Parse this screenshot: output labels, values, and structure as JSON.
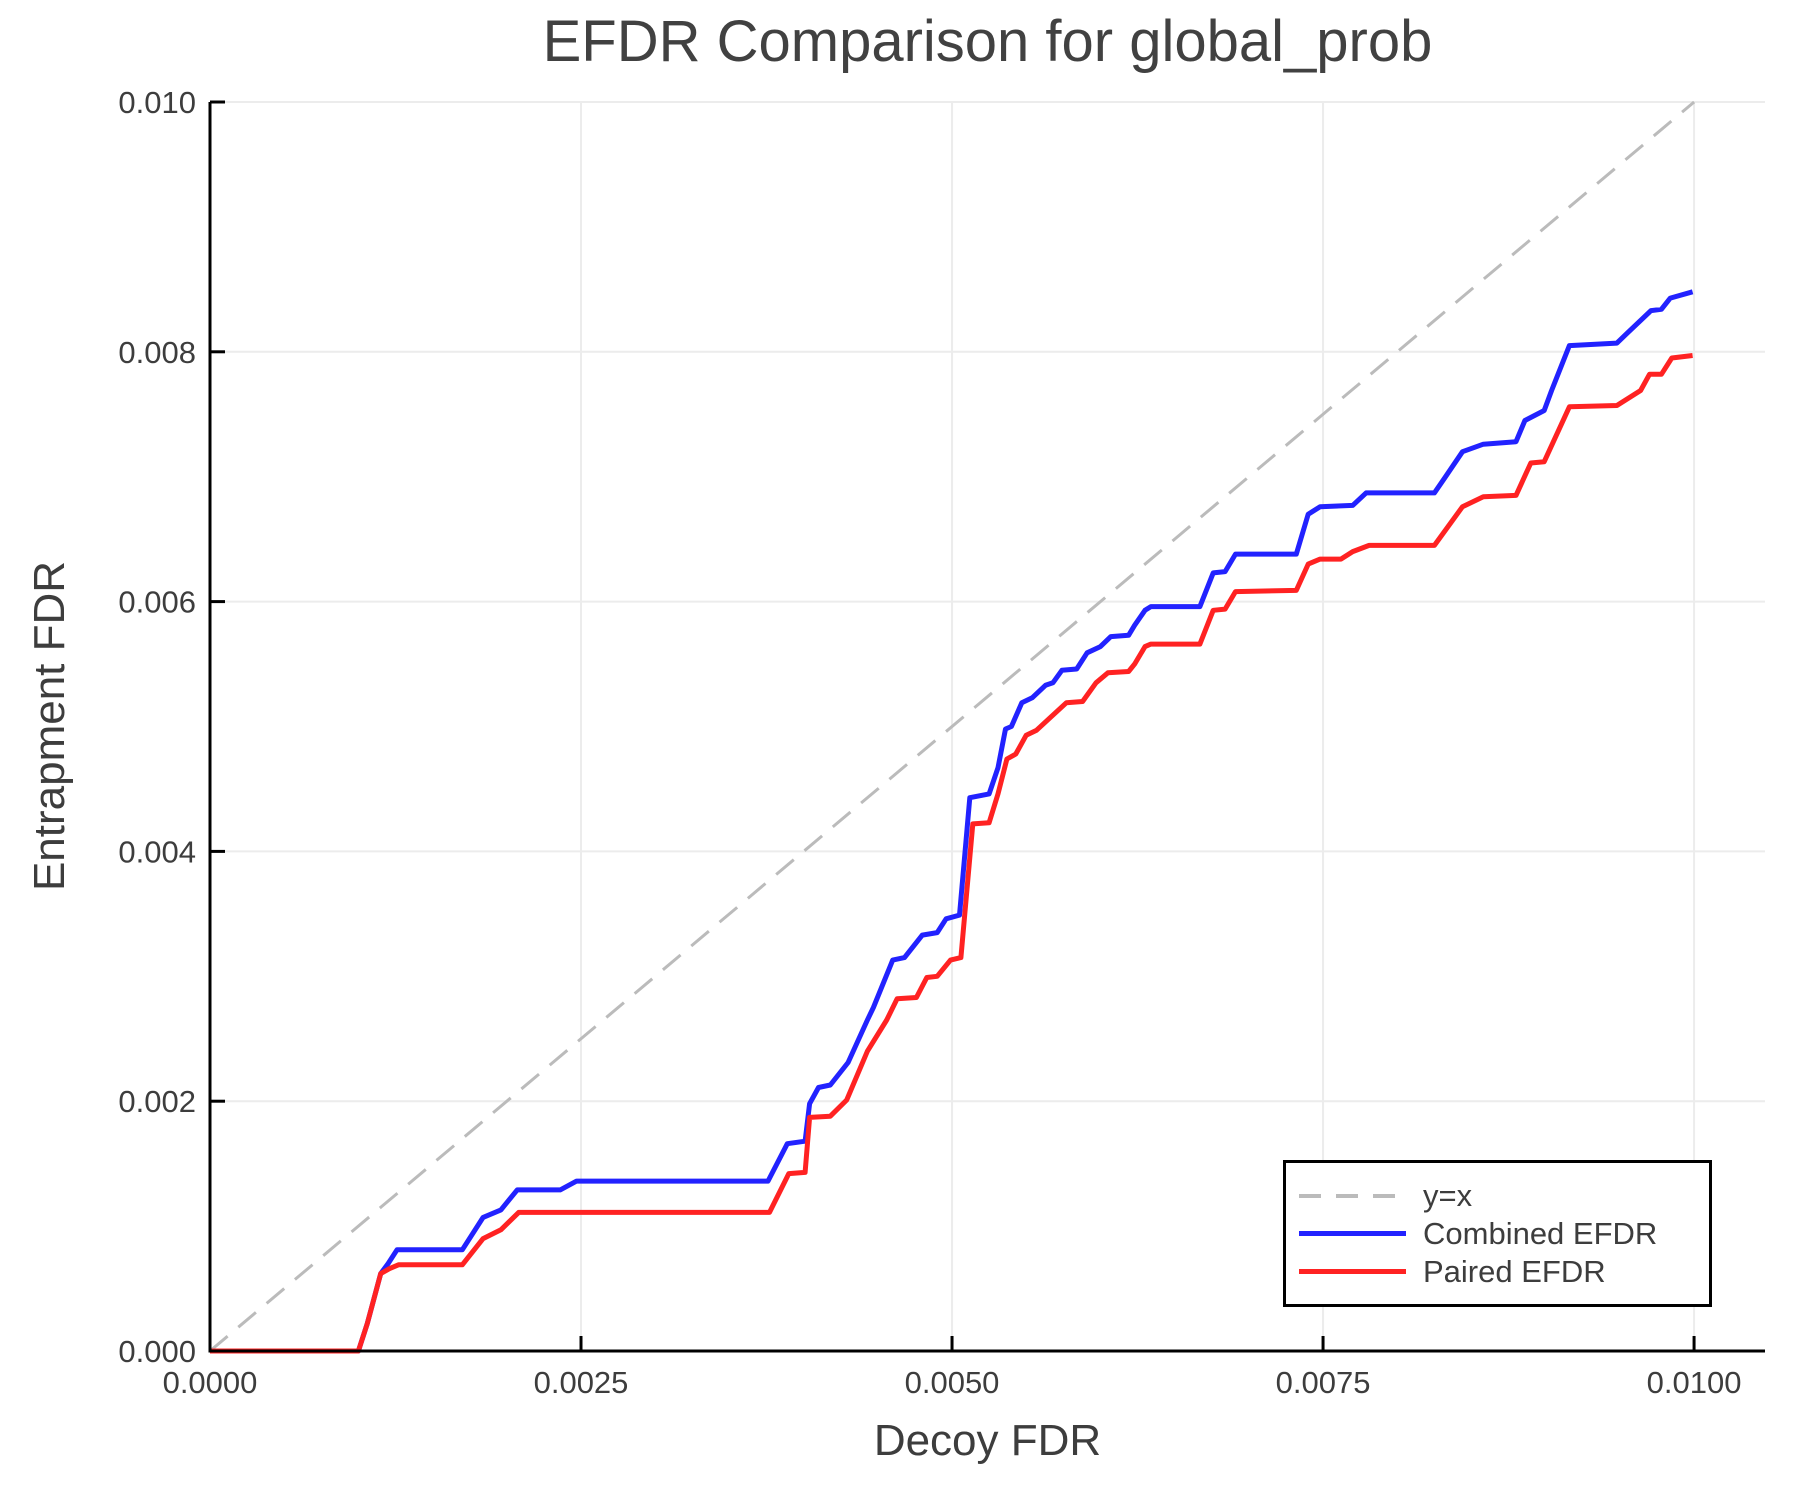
{
  "title": "EFDR Comparison for global_prob",
  "colors": {
    "text": "#3d3d3d",
    "grid": "#ececec",
    "spine": "#000000",
    "identity_line": "#bbbbbb",
    "combined": "#2222ff",
    "paired": "#ff2222",
    "legend_border": "#000000",
    "background": "#ffffff"
  },
  "chart_data": {
    "type": "line",
    "title": "EFDR Comparison for global_prob",
    "xlabel": "Decoy FDR",
    "ylabel": "Entrapment FDR",
    "xlim": [
      0,
      0.010478
    ],
    "ylim": [
      0,
      0.01
    ],
    "grid": true,
    "legend_position": "lower right",
    "xticks": {
      "values": [
        0,
        0.0025,
        0.005,
        0.0075,
        0.01
      ],
      "labels": [
        "0.0000",
        "0.0025",
        "0.0050",
        "0.0075",
        "0.0100"
      ]
    },
    "yticks": {
      "values": [
        0,
        0.002,
        0.004,
        0.006,
        0.008,
        0.01
      ],
      "labels": [
        "0.000",
        "0.002",
        "0.004",
        "0.006",
        "0.008",
        "0.010"
      ]
    },
    "series": [
      {
        "name": "y=x",
        "color": "#bbbbbb",
        "style": "dashed",
        "width": 3,
        "points": [
          [
            0,
            0
          ],
          [
            0.01,
            0.01
          ]
        ]
      },
      {
        "name": "Combined EFDR",
        "color": "#2222ff",
        "style": "solid",
        "width": 5,
        "points": [
          [
            0,
            0
          ],
          [
            0.001,
            0
          ],
          [
            0.00106,
            0.00022
          ],
          [
            0.00115,
            0.00062
          ],
          [
            0.0012,
            0.0007
          ],
          [
            0.00126,
            0.00081
          ],
          [
            0.0017,
            0.00081
          ],
          [
            0.00184,
            0.00107
          ],
          [
            0.00196,
            0.00113
          ],
          [
            0.00207,
            0.00129
          ],
          [
            0.00236,
            0.00129
          ],
          [
            0.00247,
            0.00136
          ],
          [
            0.00376,
            0.00136
          ],
          [
            0.00389,
            0.00166
          ],
          [
            0.00401,
            0.00168
          ],
          [
            0.00404,
            0.00198
          ],
          [
            0.0041,
            0.00211
          ],
          [
            0.00418,
            0.00213
          ],
          [
            0.0043,
            0.00231
          ],
          [
            0.00443,
            0.00265
          ],
          [
            0.00447,
            0.00275
          ],
          [
            0.0046,
            0.00313
          ],
          [
            0.00468,
            0.00315
          ],
          [
            0.0048,
            0.00333
          ],
          [
            0.0049,
            0.00335
          ],
          [
            0.00496,
            0.00346
          ],
          [
            0.00505,
            0.00349
          ],
          [
            0.00512,
            0.00443
          ],
          [
            0.00525,
            0.00446
          ],
          [
            0.00531,
            0.00467
          ],
          [
            0.00536,
            0.00498
          ],
          [
            0.0054,
            0.005
          ],
          [
            0.00547,
            0.00519
          ],
          [
            0.00554,
            0.00523
          ],
          [
            0.00563,
            0.00533
          ],
          [
            0.00568,
            0.00535
          ],
          [
            0.00574,
            0.00545
          ],
          [
            0.00584,
            0.00546
          ],
          [
            0.00591,
            0.00559
          ],
          [
            0.006,
            0.00564
          ],
          [
            0.00607,
            0.00572
          ],
          [
            0.00619,
            0.00573
          ],
          [
            0.00623,
            0.00581
          ],
          [
            0.0063,
            0.00593
          ],
          [
            0.00634,
            0.00596
          ],
          [
            0.00667,
            0.00596
          ],
          [
            0.00676,
            0.00623
          ],
          [
            0.00684,
            0.00624
          ],
          [
            0.00691,
            0.00638
          ],
          [
            0.00732,
            0.00638
          ],
          [
            0.0074,
            0.0067
          ],
          [
            0.00748,
            0.00676
          ],
          [
            0.0077,
            0.00677
          ],
          [
            0.00779,
            0.00687
          ],
          [
            0.00825,
            0.00687
          ],
          [
            0.00832,
            0.00699
          ],
          [
            0.00844,
            0.0072
          ],
          [
            0.00858,
            0.00726
          ],
          [
            0.0088,
            0.00728
          ],
          [
            0.00886,
            0.00745
          ],
          [
            0.00899,
            0.00753
          ],
          [
            0.00904,
            0.00769
          ],
          [
            0.00916,
            0.00805
          ],
          [
            0.00948,
            0.00807
          ],
          [
            0.00955,
            0.00815
          ],
          [
            0.00971,
            0.00833
          ],
          [
            0.00978,
            0.00834
          ],
          [
            0.00984,
            0.00843
          ],
          [
            0.00999,
            0.00848
          ]
        ]
      },
      {
        "name": "Paired EFDR",
        "color": "#ff2222",
        "style": "solid",
        "width": 5,
        "points": [
          [
            0,
            0
          ],
          [
            0.001,
            0
          ],
          [
            0.00106,
            0.00022
          ],
          [
            0.00115,
            0.00062
          ],
          [
            0.00121,
            0.00066
          ],
          [
            0.00127,
            0.00069
          ],
          [
            0.0017,
            0.00069
          ],
          [
            0.00184,
            0.0009
          ],
          [
            0.00196,
            0.00097
          ],
          [
            0.00208,
            0.00111
          ],
          [
            0.00377,
            0.00111
          ],
          [
            0.0039,
            0.00142
          ],
          [
            0.00401,
            0.00143
          ],
          [
            0.00404,
            0.00187
          ],
          [
            0.00418,
            0.00188
          ],
          [
            0.00429,
            0.00201
          ],
          [
            0.00443,
            0.0024
          ],
          [
            0.00456,
            0.00265
          ],
          [
            0.00463,
            0.00282
          ],
          [
            0.00476,
            0.00283
          ],
          [
            0.00483,
            0.00299
          ],
          [
            0.0049,
            0.003
          ],
          [
            0.00499,
            0.00313
          ],
          [
            0.00506,
            0.00315
          ],
          [
            0.00514,
            0.00422
          ],
          [
            0.00525,
            0.00423
          ],
          [
            0.00531,
            0.00446
          ],
          [
            0.00537,
            0.00474
          ],
          [
            0.00543,
            0.00478
          ],
          [
            0.0055,
            0.00493
          ],
          [
            0.00557,
            0.00497
          ],
          [
            0.00566,
            0.00507
          ],
          [
            0.00577,
            0.00519
          ],
          [
            0.00588,
            0.0052
          ],
          [
            0.00597,
            0.00535
          ],
          [
            0.00605,
            0.00543
          ],
          [
            0.00619,
            0.00544
          ],
          [
            0.00623,
            0.0055
          ],
          [
            0.0063,
            0.00564
          ],
          [
            0.00634,
            0.00566
          ],
          [
            0.00667,
            0.00566
          ],
          [
            0.00676,
            0.00593
          ],
          [
            0.00684,
            0.00594
          ],
          [
            0.00691,
            0.00608
          ],
          [
            0.00732,
            0.00609
          ],
          [
            0.0074,
            0.0063
          ],
          [
            0.00748,
            0.00634
          ],
          [
            0.00762,
            0.00634
          ],
          [
            0.0077,
            0.0064
          ],
          [
            0.00781,
            0.00645
          ],
          [
            0.00825,
            0.00645
          ],
          [
            0.00844,
            0.00676
          ],
          [
            0.00858,
            0.00684
          ],
          [
            0.0088,
            0.00685
          ],
          [
            0.0089,
            0.00711
          ],
          [
            0.00899,
            0.00712
          ],
          [
            0.00916,
            0.00756
          ],
          [
            0.00948,
            0.00757
          ],
          [
            0.00964,
            0.00769
          ],
          [
            0.0097,
            0.00782
          ],
          [
            0.00978,
            0.00782
          ],
          [
            0.00985,
            0.00795
          ],
          [
            0.00999,
            0.00797
          ]
        ]
      }
    ]
  }
}
